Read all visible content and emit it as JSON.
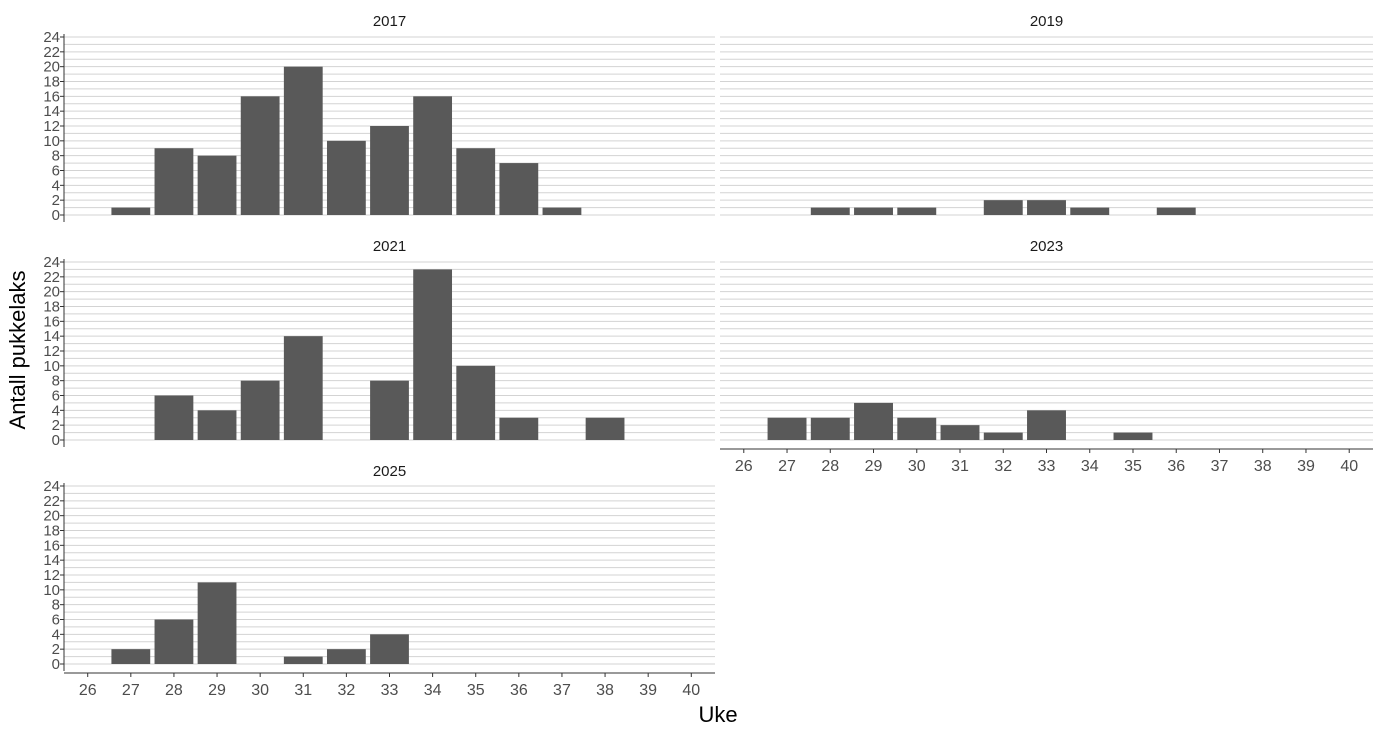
{
  "chart_data": {
    "type": "bar",
    "title": "",
    "xlabel": "Uke",
    "ylabel": "Antall pukkelaks",
    "ylim": [
      0,
      24
    ],
    "yticks": [
      0,
      2,
      4,
      6,
      8,
      10,
      12,
      14,
      16,
      18,
      20,
      22,
      24
    ],
    "categories": [
      26,
      27,
      28,
      29,
      30,
      31,
      32,
      33,
      34,
      35,
      36,
      37,
      38,
      39,
      40
    ],
    "grid": "horizontal major+minor",
    "facets": [
      {
        "name": "2017",
        "values": [
          0,
          1,
          9,
          8,
          16,
          20,
          10,
          12,
          16,
          9,
          7,
          1,
          0,
          0,
          0
        ]
      },
      {
        "name": "2019",
        "values": [
          0,
          0,
          1,
          1,
          1,
          0,
          2,
          2,
          1,
          0,
          1,
          0,
          0,
          0,
          0
        ]
      },
      {
        "name": "2021",
        "values": [
          0,
          0,
          6,
          4,
          8,
          14,
          0,
          8,
          23,
          10,
          3,
          0,
          3,
          0,
          0
        ]
      },
      {
        "name": "2023",
        "values": [
          0,
          3,
          3,
          5,
          3,
          2,
          1,
          4,
          0,
          1,
          0,
          0,
          0,
          0,
          0
        ]
      },
      {
        "name": "2025",
        "values": [
          0,
          2,
          6,
          11,
          0,
          1,
          2,
          4,
          0,
          0,
          0,
          0,
          0,
          0,
          0
        ]
      }
    ],
    "bar_color": "#595959"
  }
}
